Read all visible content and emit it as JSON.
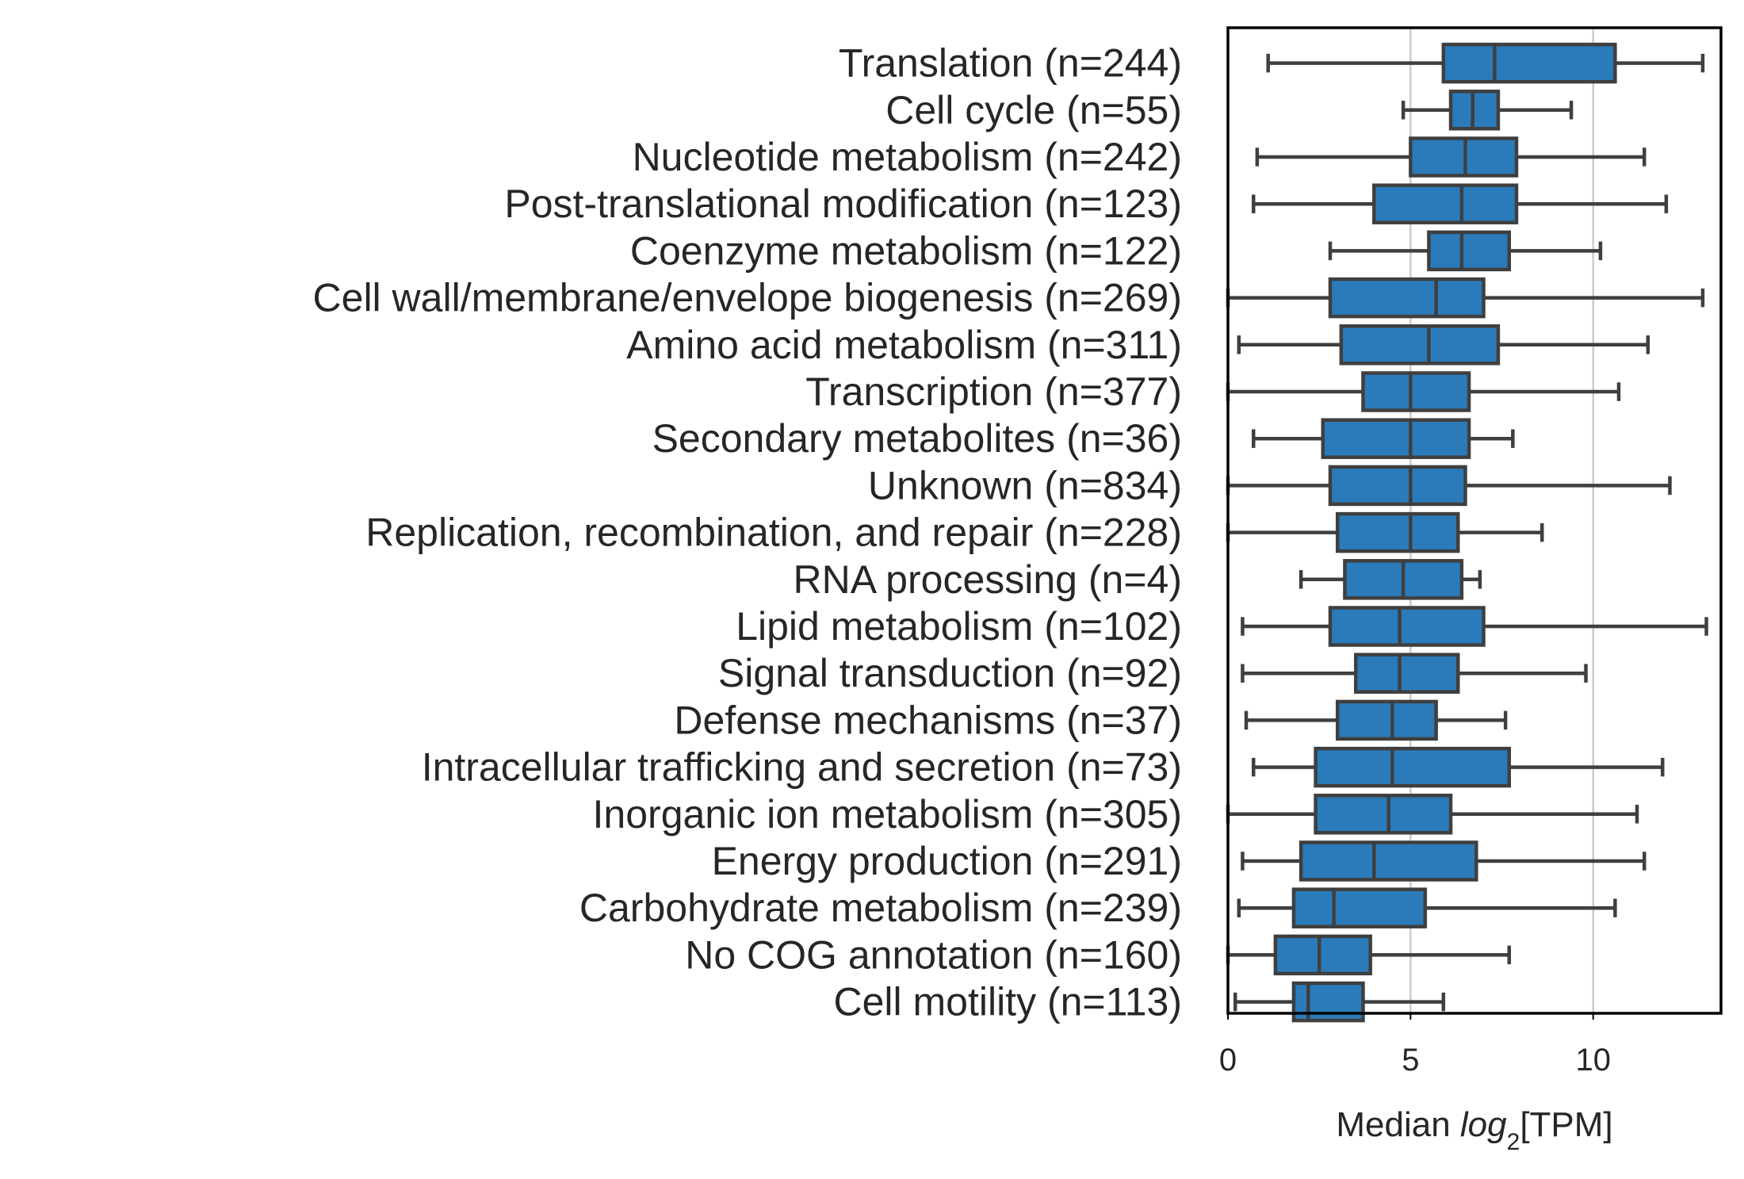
{
  "chart_data": {
    "type": "boxplot",
    "orientation": "horizontal",
    "xlabel": {
      "prefix": "Median ",
      "italic": "log",
      "subscript": "2",
      "suffix": "[TPM]"
    },
    "xlim": [
      0,
      13.5
    ],
    "xticks": [
      0,
      5,
      10
    ],
    "grid": "vertical",
    "colors": {
      "box": "#2b7bba",
      "line": "#3f3f3f",
      "grid": "#cccccc",
      "frame": "#000000"
    },
    "categories": [
      {
        "label": "Translation (n=244)",
        "whislo": 1.1,
        "q1": 5.9,
        "med": 7.3,
        "q3": 10.6,
        "whishi": 13.0
      },
      {
        "label": "Cell cycle (n=55)",
        "whislo": 4.8,
        "q1": 6.1,
        "med": 6.7,
        "q3": 7.4,
        "whishi": 9.4
      },
      {
        "label": "Nucleotide metabolism (n=242)",
        "whislo": 0.8,
        "q1": 5.0,
        "med": 6.5,
        "q3": 7.9,
        "whishi": 11.4
      },
      {
        "label": "Post-translational modification (n=123)",
        "whislo": 0.7,
        "q1": 4.0,
        "med": 6.4,
        "q3": 7.9,
        "whishi": 12.0
      },
      {
        "label": "Coenzyme metabolism (n=122)",
        "whislo": 2.8,
        "q1": 5.5,
        "med": 6.4,
        "q3": 7.7,
        "whishi": 10.2
      },
      {
        "label": "Cell wall/membrane/envelope biogenesis (n=269)",
        "whislo": 0.0,
        "q1": 2.8,
        "med": 5.7,
        "q3": 7.0,
        "whishi": 13.0
      },
      {
        "label": "Amino acid metabolism (n=311)",
        "whislo": 0.3,
        "q1": 3.1,
        "med": 5.5,
        "q3": 7.4,
        "whishi": 11.5
      },
      {
        "label": "Transcription (n=377)",
        "whislo": 0.0,
        "q1": 3.7,
        "med": 5.0,
        "q3": 6.6,
        "whishi": 10.7
      },
      {
        "label": "Secondary metabolites (n=36)",
        "whislo": 0.7,
        "q1": 2.6,
        "med": 5.0,
        "q3": 6.6,
        "whishi": 7.8
      },
      {
        "label": "Unknown (n=834)",
        "whislo": 0.0,
        "q1": 2.8,
        "med": 5.0,
        "q3": 6.5,
        "whishi": 12.1
      },
      {
        "label": "Replication, recombination, and repair (n=228)",
        "whislo": 0.0,
        "q1": 3.0,
        "med": 5.0,
        "q3": 6.3,
        "whishi": 8.6
      },
      {
        "label": "RNA processing (n=4)",
        "whislo": 2.0,
        "q1": 3.2,
        "med": 4.8,
        "q3": 6.4,
        "whishi": 6.9
      },
      {
        "label": "Lipid metabolism (n=102)",
        "whislo": 0.4,
        "q1": 2.8,
        "med": 4.7,
        "q3": 7.0,
        "whishi": 13.1
      },
      {
        "label": "Signal transduction (n=92)",
        "whislo": 0.4,
        "q1": 3.5,
        "med": 4.7,
        "q3": 6.3,
        "whishi": 9.8
      },
      {
        "label": "Defense mechanisms (n=37)",
        "whislo": 0.5,
        "q1": 3.0,
        "med": 4.5,
        "q3": 5.7,
        "whishi": 7.6
      },
      {
        "label": "Intracellular trafficking and secretion (n=73)",
        "whislo": 0.7,
        "q1": 2.4,
        "med": 4.5,
        "q3": 7.7,
        "whishi": 11.9
      },
      {
        "label": "Inorganic ion metabolism (n=305)",
        "whislo": 0.0,
        "q1": 2.4,
        "med": 4.4,
        "q3": 6.1,
        "whishi": 11.2
      },
      {
        "label": "Energy production (n=291)",
        "whislo": 0.4,
        "q1": 2.0,
        "med": 4.0,
        "q3": 6.8,
        "whishi": 11.4
      },
      {
        "label": "Carbohydrate metabolism (n=239)",
        "whislo": 0.3,
        "q1": 1.8,
        "med": 2.9,
        "q3": 5.4,
        "whishi": 10.6
      },
      {
        "label": "No COG annotation (n=160)",
        "whislo": 0.0,
        "q1": 1.3,
        "med": 2.5,
        "q3": 3.9,
        "whishi": 7.7
      },
      {
        "label": "Cell motility (n=113)",
        "whislo": 0.2,
        "q1": 1.8,
        "med": 2.2,
        "q3": 3.7,
        "whishi": 5.9
      }
    ]
  }
}
